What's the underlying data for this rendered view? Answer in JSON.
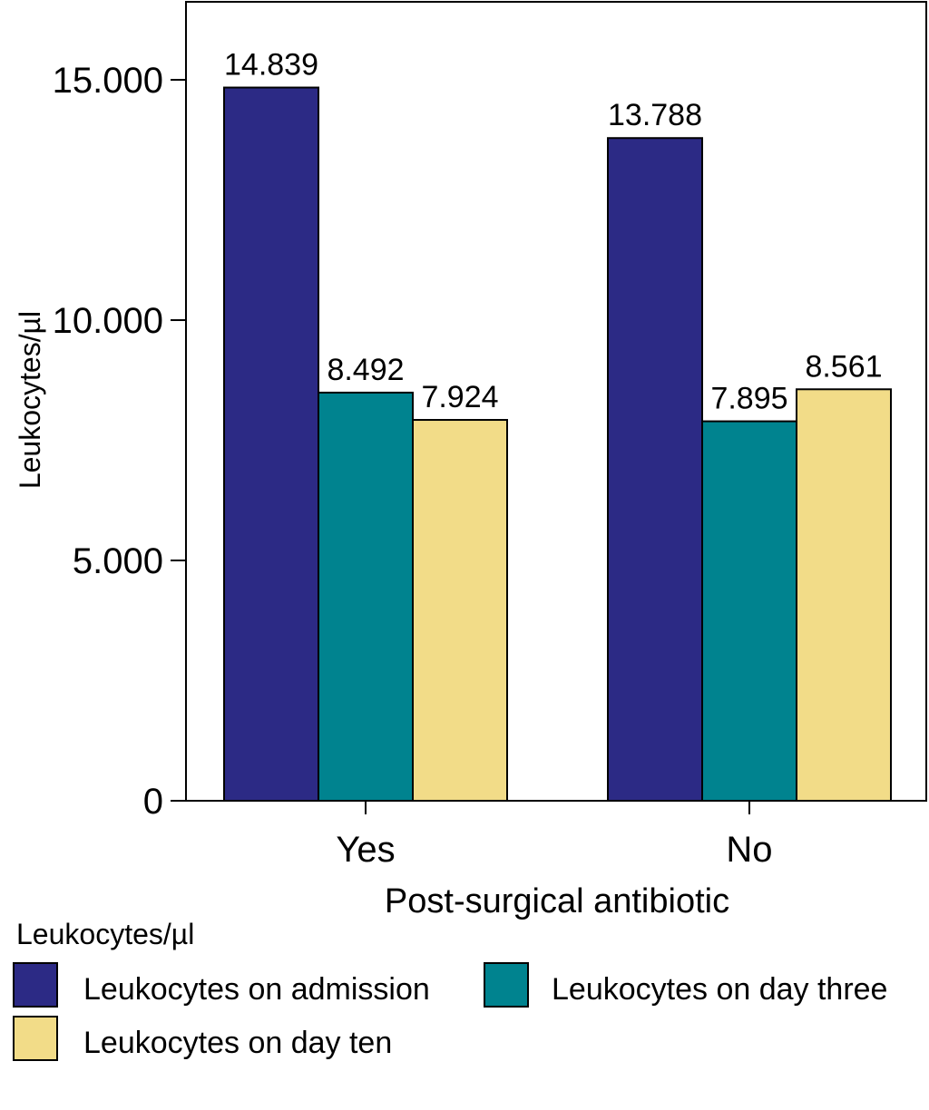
{
  "chart_data": {
    "type": "bar",
    "xlabel": "Post-surgical antibiotic",
    "ylabel": "Leukocytes/µl",
    "categories": [
      "Yes",
      "No"
    ],
    "ylim": [
      0,
      16500
    ],
    "yticks": [
      0,
      5000,
      10000,
      15000
    ],
    "ytick_labels": [
      "0",
      "5.000",
      "10.000",
      "15.000"
    ],
    "grid": false,
    "legend_title": "Leukocytes/µl",
    "legend_position": "bottom",
    "series": [
      {
        "name": "Leukocytes on admission",
        "color": "#2c2a85",
        "values": [
          14839,
          13788
        ],
        "labels": [
          "14.839",
          "13.788"
        ]
      },
      {
        "name": "Leukocytes on day three",
        "color": "#00838f",
        "values": [
          8492,
          7895
        ],
        "labels": [
          "8.492",
          "7.895"
        ]
      },
      {
        "name": "Leukocytes on day ten",
        "color": "#f2dc88",
        "values": [
          7924,
          8561
        ],
        "labels": [
          "7.924",
          "8.561"
        ]
      }
    ]
  }
}
